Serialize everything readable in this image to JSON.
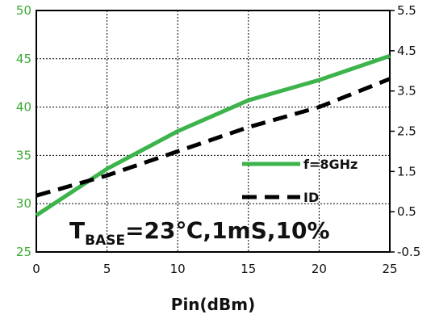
{
  "chart_data": {
    "type": "line",
    "xlabel": "Pin(dBm)",
    "x_ticks": [
      "0",
      "5",
      "10",
      "15",
      "20",
      "25"
    ],
    "xlim": [
      0,
      25
    ],
    "ylim_left": [
      25,
      50
    ],
    "y_left_ticks": [
      "25",
      "30",
      "35",
      "40",
      "45",
      "50"
    ],
    "ylim_right": [
      -0.5,
      5.5
    ],
    "y_right_ticks": [
      "-0.5",
      "0.5",
      "1.5",
      "2.5",
      "3.5",
      "4.5",
      "5.5"
    ],
    "grid": true,
    "legend_position": "center-right",
    "series": [
      {
        "name": "f=8GHz",
        "axis": "left",
        "style": "solid",
        "color": "#3cb44b",
        "x": [
          0,
          5,
          10,
          15,
          20,
          25
        ],
        "values": [
          28.8,
          33.6,
          37.5,
          40.7,
          42.8,
          45.3
        ]
      },
      {
        "name": "ID",
        "axis": "right",
        "style": "dashed",
        "color": "#000000",
        "x": [
          0,
          5,
          10,
          15,
          20,
          25
        ],
        "values": [
          0.9,
          1.4,
          2.0,
          2.6,
          3.1,
          3.8
        ]
      }
    ],
    "annotation": {
      "prefix": "T",
      "subscript": "BASE",
      "suffix": "=23℃,1mS,10%"
    }
  }
}
